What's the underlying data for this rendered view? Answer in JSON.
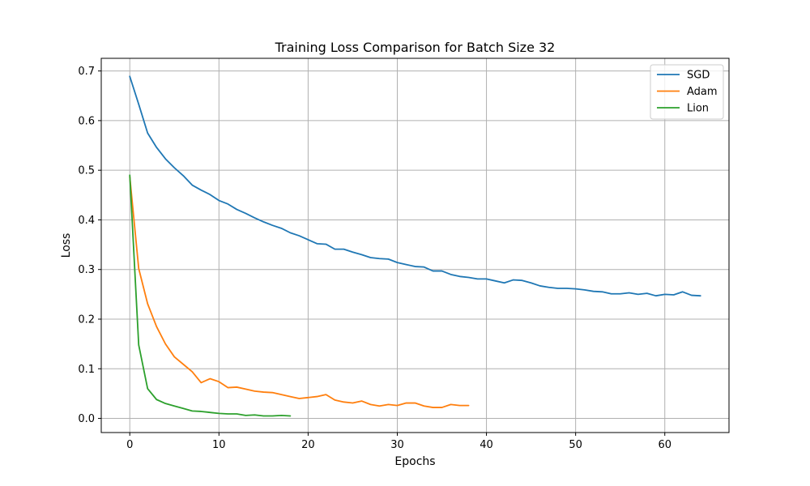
{
  "chart_data": {
    "type": "line",
    "title": "Training Loss Comparison for Batch Size 32",
    "xlabel": "Epochs",
    "ylabel": "Loss",
    "xlim": [
      -3.2,
      67.2
    ],
    "ylim": [
      -0.0285,
      0.7255
    ],
    "xticks": [
      0,
      10,
      20,
      30,
      40,
      50,
      60
    ],
    "yticks": [
      0.0,
      0.1,
      0.2,
      0.3,
      0.4,
      0.5,
      0.6,
      0.7
    ],
    "grid": true,
    "legend_position": "top-right",
    "series": [
      {
        "name": "SGD",
        "color": "#1f77b4",
        "x": [
          0,
          1,
          2,
          3,
          4,
          5,
          6,
          7,
          8,
          9,
          10,
          11,
          12,
          13,
          14,
          15,
          16,
          17,
          18,
          19,
          20,
          21,
          22,
          23,
          24,
          25,
          26,
          27,
          28,
          29,
          30,
          31,
          32,
          33,
          34,
          35,
          36,
          37,
          38,
          39,
          40,
          41,
          42,
          43,
          44,
          45,
          46,
          47,
          48,
          49,
          50,
          51,
          52,
          53,
          54,
          55,
          56,
          57,
          58,
          59,
          60,
          61,
          62,
          63,
          64
        ],
        "values": [
          0.689,
          0.633,
          0.575,
          0.546,
          0.523,
          0.505,
          0.489,
          0.47,
          0.46,
          0.451,
          0.439,
          0.432,
          0.421,
          0.413,
          0.404,
          0.396,
          0.389,
          0.383,
          0.374,
          0.368,
          0.36,
          0.352,
          0.351,
          0.341,
          0.341,
          0.335,
          0.33,
          0.324,
          0.322,
          0.321,
          0.314,
          0.31,
          0.306,
          0.305,
          0.297,
          0.297,
          0.29,
          0.286,
          0.284,
          0.281,
          0.281,
          0.277,
          0.273,
          0.279,
          0.278,
          0.273,
          0.267,
          0.264,
          0.262,
          0.262,
          0.261,
          0.259,
          0.256,
          0.255,
          0.251,
          0.251,
          0.253,
          0.25,
          0.252,
          0.247,
          0.25,
          0.249,
          0.255,
          0.248,
          0.247
        ]
      },
      {
        "name": "Adam",
        "color": "#ff7f0e",
        "x": [
          0,
          1,
          2,
          3,
          4,
          5,
          6,
          7,
          8,
          9,
          10,
          11,
          12,
          13,
          14,
          15,
          16,
          17,
          18,
          19,
          20,
          21,
          22,
          23,
          24,
          25,
          26,
          27,
          28,
          29,
          30,
          31,
          32,
          33,
          34,
          35,
          36,
          37,
          38
        ],
        "values": [
          0.487,
          0.302,
          0.231,
          0.185,
          0.15,
          0.124,
          0.109,
          0.094,
          0.072,
          0.08,
          0.074,
          0.062,
          0.063,
          0.059,
          0.055,
          0.053,
          0.052,
          0.048,
          0.044,
          0.04,
          0.042,
          0.044,
          0.048,
          0.037,
          0.033,
          0.031,
          0.035,
          0.028,
          0.025,
          0.028,
          0.026,
          0.031,
          0.031,
          0.025,
          0.022,
          0.022,
          0.028,
          0.026,
          0.026
        ]
      },
      {
        "name": "Lion",
        "color": "#2ca02c",
        "x": [
          0,
          1,
          2,
          3,
          4,
          5,
          6,
          7,
          8,
          9,
          10,
          11,
          12,
          13,
          14,
          15,
          16,
          17,
          18
        ],
        "values": [
          0.49,
          0.148,
          0.06,
          0.038,
          0.03,
          0.025,
          0.02,
          0.015,
          0.014,
          0.012,
          0.01,
          0.009,
          0.009,
          0.006,
          0.007,
          0.005,
          0.005,
          0.006,
          0.005
        ]
      }
    ]
  }
}
